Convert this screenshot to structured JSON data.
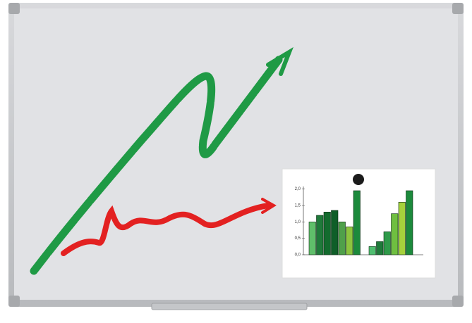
{
  "chart_data": {
    "type": "bar",
    "ylim": [
      0,
      2.1
    ],
    "yticks": [
      {
        "value": 0,
        "label": "0,0"
      },
      {
        "value": 0.5,
        "label": "0,5"
      },
      {
        "value": 1,
        "label": "1,0"
      },
      {
        "value": 1.5,
        "label": "1,5"
      },
      {
        "value": 2,
        "label": "2,0"
      }
    ],
    "groups": [
      {
        "values": [
          1.0,
          1.2,
          1.3,
          1.35,
          1.0,
          0.85,
          1.95
        ],
        "colors": [
          "#5fbf6a",
          "#1f7a3a",
          "#136b2e",
          "#0f5e28",
          "#4fa04a",
          "#8cc43e",
          "#1c8a3c"
        ]
      },
      {
        "values": [
          0.25,
          0.4,
          0.7,
          1.25,
          1.6,
          1.95
        ],
        "colors": [
          "#4fbf70",
          "#1f7a3a",
          "#2f9a4a",
          "#6fbf40",
          "#a6d23c",
          "#1c8a3c"
        ]
      }
    ]
  }
}
